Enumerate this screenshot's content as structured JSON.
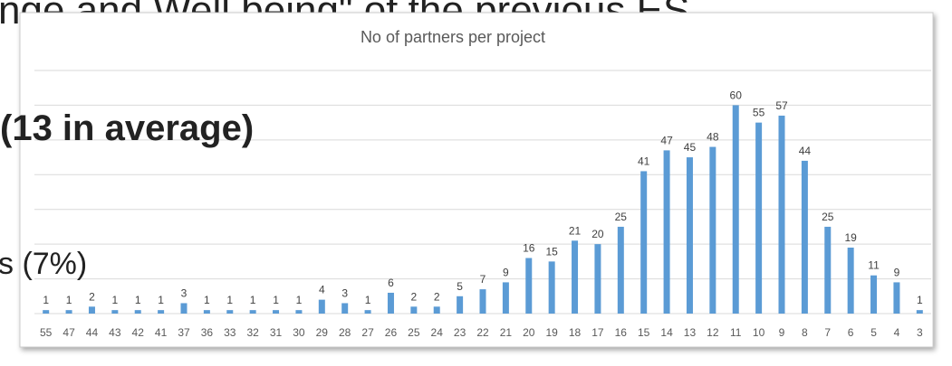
{
  "slide": {
    "heading": "nge and Well being\" of the previous ES",
    "average": "(13 in average)",
    "note": "s (7%)"
  },
  "chart_data": {
    "type": "bar",
    "title": "No of partners per project",
    "categories": [
      "55",
      "47",
      "44",
      "43",
      "42",
      "41",
      "37",
      "36",
      "33",
      "32",
      "31",
      "30",
      "29",
      "28",
      "27",
      "26",
      "25",
      "24",
      "23",
      "22",
      "21",
      "20",
      "19",
      "18",
      "17",
      "16",
      "15",
      "14",
      "13",
      "12",
      "11",
      "10",
      "9",
      "8",
      "7",
      "6",
      "5",
      "4",
      "3"
    ],
    "values": [
      1,
      1,
      2,
      1,
      1,
      1,
      3,
      1,
      1,
      1,
      1,
      1,
      4,
      3,
      1,
      6,
      2,
      2,
      5,
      7,
      9,
      16,
      15,
      21,
      20,
      25,
      41,
      47,
      45,
      48,
      60,
      55,
      57,
      44,
      25,
      19,
      11,
      9,
      1
    ],
    "color": "#5b9bd5",
    "ylim": [
      0,
      70
    ],
    "yticks": [
      0,
      10,
      20,
      30,
      40,
      50,
      60,
      70
    ],
    "grid": true
  }
}
